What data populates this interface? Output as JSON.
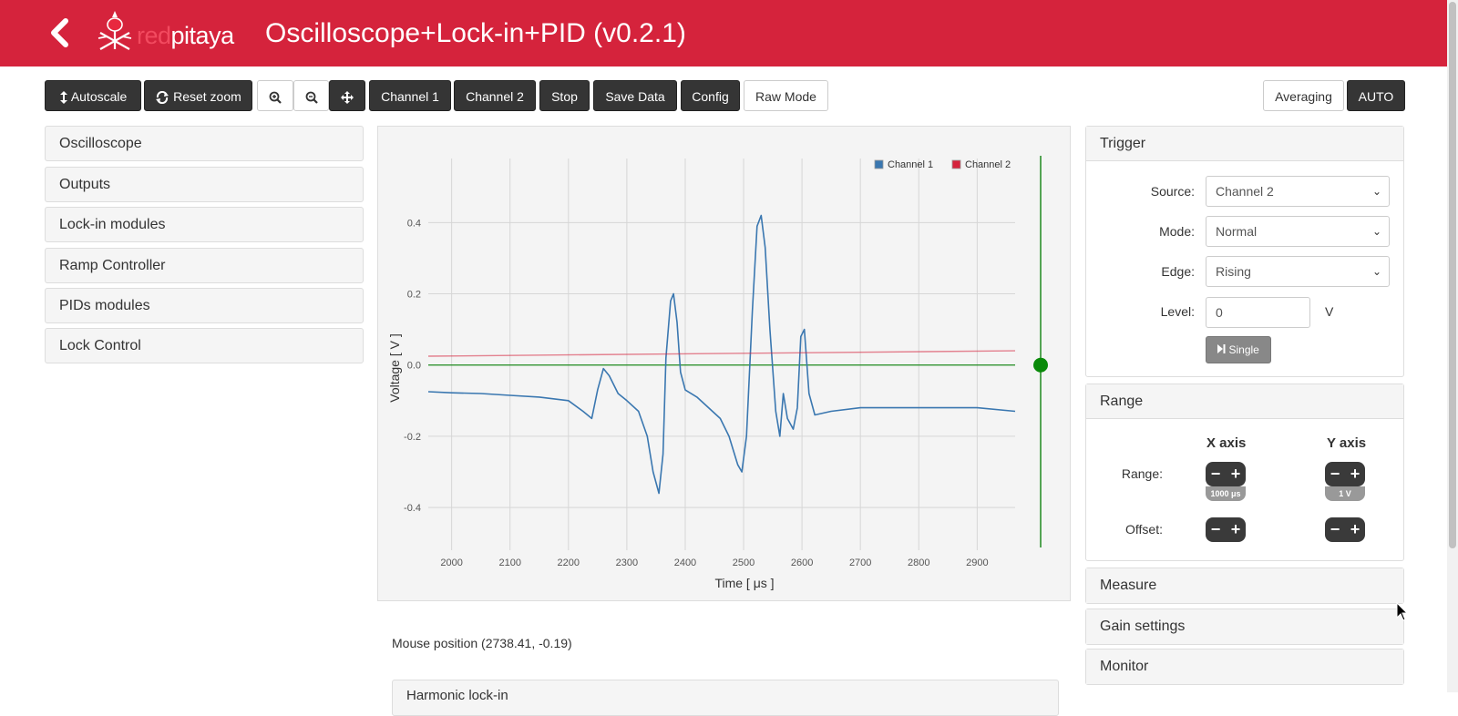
{
  "header": {
    "logo_text_red": "red",
    "logo_text_white": "pitaya",
    "title": "Oscilloscope+Lock-in+PID (v0.2.1)",
    "bg_color": "#d5233c"
  },
  "toolbar": {
    "autoscale": "Autoscale",
    "reset_zoom": "Reset zoom",
    "channel1": "Channel 1",
    "channel2": "Channel 2",
    "stop": "Stop",
    "save_data": "Save Data",
    "config": "Config",
    "raw_mode": "Raw Mode",
    "averaging": "Averaging",
    "auto": "AUTO",
    "icons": [
      "zoom-in-icon",
      "zoom-out-icon",
      "move-icon"
    ]
  },
  "sidebar": {
    "items": [
      {
        "label": "Oscilloscope"
      },
      {
        "label": "Outputs"
      },
      {
        "label": "Lock-in modules"
      },
      {
        "label": "Ramp Controller"
      },
      {
        "label": "PIDs modules"
      },
      {
        "label": "Lock Control"
      }
    ]
  },
  "chart_data": {
    "type": "line",
    "xlabel": "Time [ μs ]",
    "ylabel": "Voltage [ V ]",
    "xlim": [
      1960,
      2965
    ],
    "ylim": [
      -0.52,
      0.58
    ],
    "x_ticks": [
      2000,
      2100,
      2200,
      2300,
      2400,
      2500,
      2600,
      2700,
      2800,
      2900
    ],
    "x_tick_labels": [
      "2000",
      "2100",
      "2200",
      "2300",
      "2400",
      "2500",
      "2600",
      "2700",
      "2800",
      "2900"
    ],
    "y_ticks": [
      -0.4,
      -0.2,
      0.0,
      0.2,
      0.4
    ],
    "y_tick_labels": [
      "-0.4",
      "-0.2",
      "0.0",
      "0.2",
      "0.4"
    ],
    "grid": true,
    "legend_position": "top-right",
    "trigger_level": 0.0,
    "series": [
      {
        "name": "Channel 1",
        "color": "#3a77b0",
        "x": [
          1960,
          2000,
          2050,
          2100,
          2150,
          2200,
          2225,
          2240,
          2250,
          2260,
          2270,
          2285,
          2300,
          2320,
          2335,
          2345,
          2355,
          2362,
          2367,
          2375,
          2380,
          2386,
          2392,
          2400,
          2420,
          2440,
          2460,
          2475,
          2490,
          2497,
          2505,
          2515,
          2523,
          2530,
          2537,
          2545,
          2555,
          2562,
          2568,
          2575,
          2585,
          2592,
          2598,
          2604,
          2612,
          2622,
          2650,
          2700,
          2750,
          2800,
          2850,
          2900,
          2965
        ],
        "y": [
          -0.075,
          -0.078,
          -0.08,
          -0.085,
          -0.09,
          -0.1,
          -0.13,
          -0.15,
          -0.07,
          -0.01,
          -0.03,
          -0.08,
          -0.1,
          -0.13,
          -0.2,
          -0.3,
          -0.36,
          -0.25,
          0.02,
          0.18,
          0.2,
          0.12,
          -0.02,
          -0.07,
          -0.09,
          -0.12,
          -0.15,
          -0.2,
          -0.28,
          -0.3,
          -0.2,
          0.15,
          0.39,
          0.42,
          0.33,
          0.1,
          -0.13,
          -0.2,
          -0.08,
          -0.15,
          -0.18,
          -0.12,
          0.08,
          0.1,
          -0.08,
          -0.14,
          -0.13,
          -0.12,
          -0.12,
          -0.12,
          -0.12,
          -0.12,
          -0.13
        ]
      },
      {
        "name": "Channel 2",
        "color": "#d5233c",
        "x": [
          1960,
          2965
        ],
        "y": [
          0.025,
          0.04
        ]
      }
    ]
  },
  "mouse": {
    "text": "Mouse position (2738.41, -0.19)"
  },
  "bottom_panel": {
    "label": "Harmonic lock-in"
  },
  "trigger": {
    "title": "Trigger",
    "source_label": "Source:",
    "source_value": "Channel 2",
    "mode_label": "Mode:",
    "mode_value": "Normal",
    "edge_label": "Edge:",
    "edge_value": "Rising",
    "level_label": "Level:",
    "level_value": "0",
    "level_unit": "V",
    "single": "Single"
  },
  "range": {
    "title": "Range",
    "x_axis": "X axis",
    "y_axis": "Y axis",
    "range_label": "Range:",
    "offset_label": "Offset:",
    "x_range_value": "1000 μs",
    "y_range_value": "1 V",
    "minus": "−",
    "plus": "+"
  },
  "collapsed_panels": {
    "measure": "Measure",
    "gain": "Gain settings",
    "monitor": "Monitor"
  }
}
